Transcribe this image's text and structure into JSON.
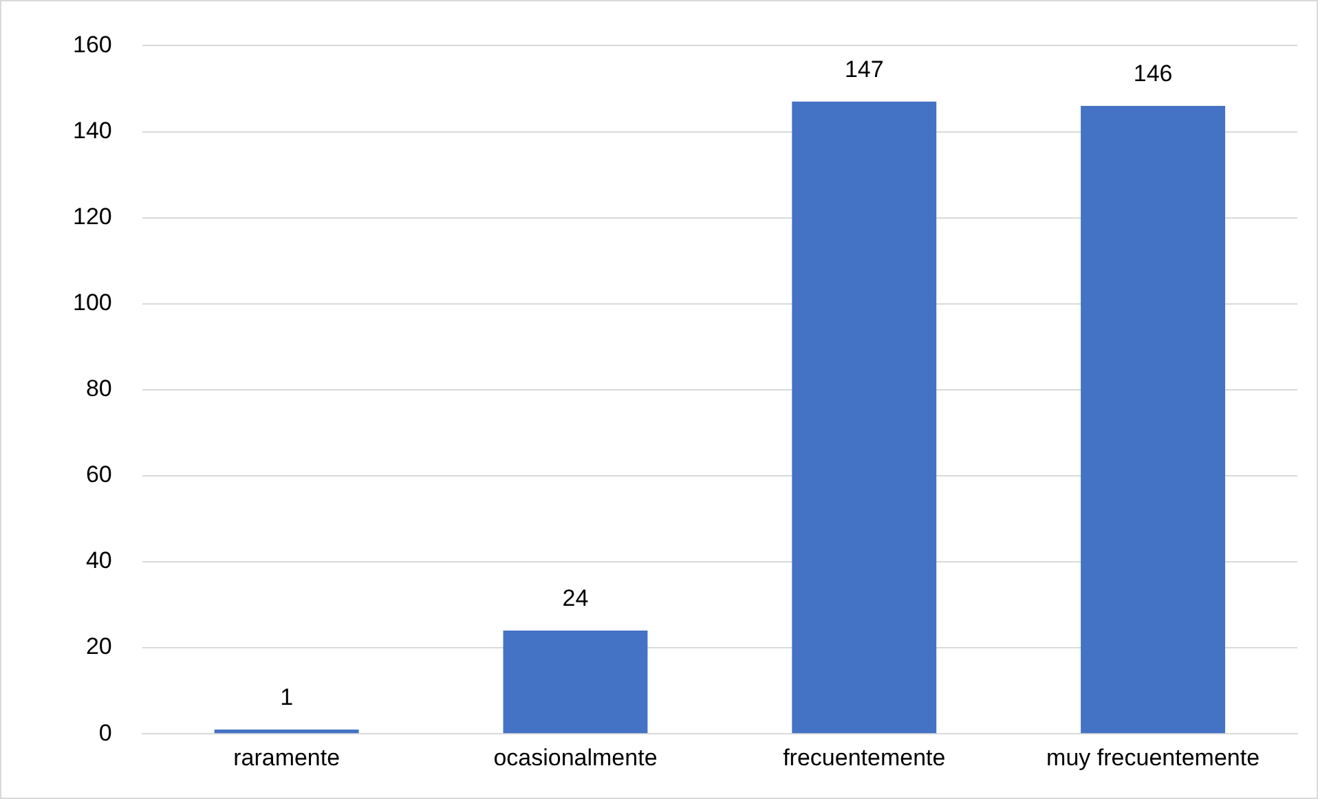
{
  "chart_data": {
    "type": "bar",
    "categories": [
      "raramente",
      "ocasionalmente",
      "frecuentemente",
      "muy frecuentemente"
    ],
    "values": [
      1,
      24,
      147,
      146
    ],
    "color": "#4472c4",
    "ylim": [
      0,
      160
    ],
    "yticks": [
      0,
      20,
      40,
      60,
      80,
      100,
      120,
      140,
      160
    ],
    "grid": "y",
    "legend": false,
    "data_labels": true
  }
}
